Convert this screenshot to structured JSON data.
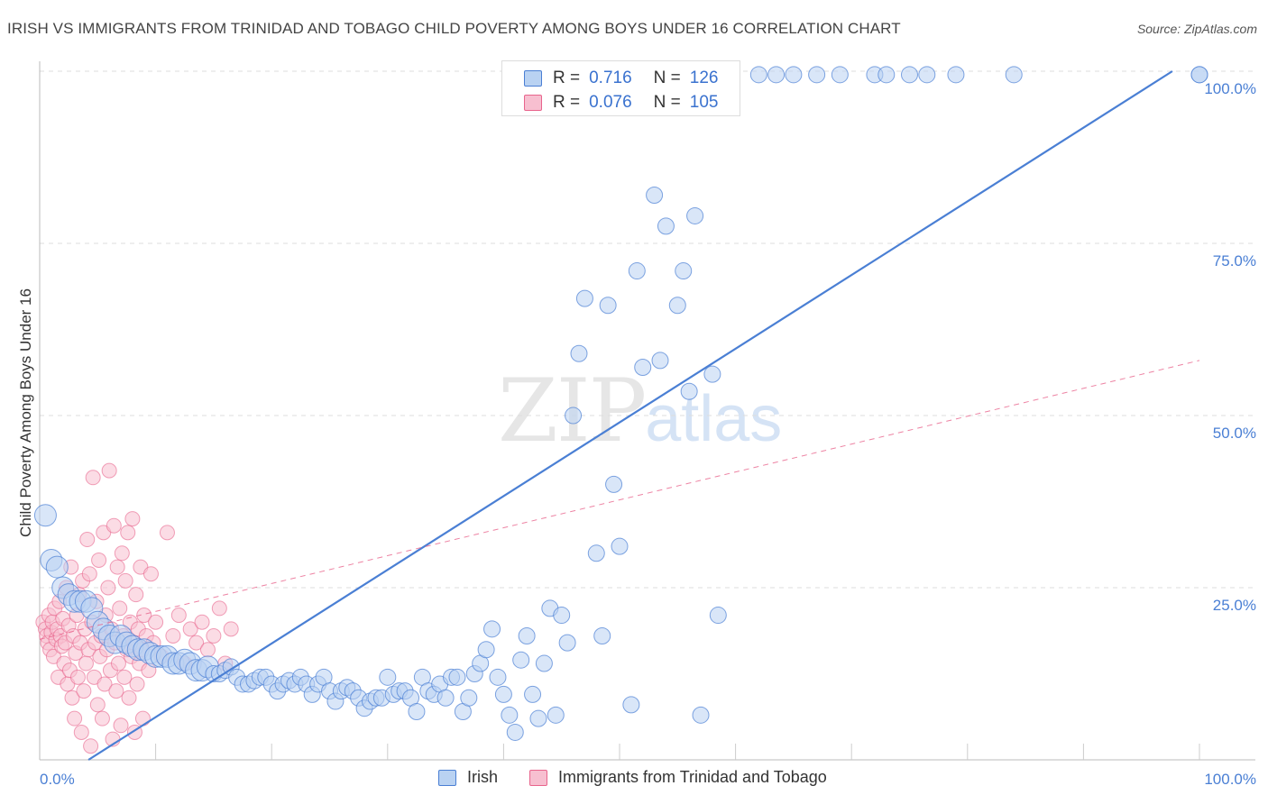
{
  "title": "IRISH VS IMMIGRANTS FROM TRINIDAD AND TOBAGO CHILD POVERTY AMONG BOYS UNDER 16 CORRELATION CHART",
  "source": "Source: ZipAtlas.com",
  "watermark": {
    "zip": "ZIP",
    "atlas": "atlas"
  },
  "legend": {
    "r_label": "R =",
    "n_label": "N =",
    "irish": {
      "r": "0.716",
      "n": "126"
    },
    "trinidad": {
      "r": "0.076",
      "n": "105"
    }
  },
  "bottom_legend": {
    "irish": "Irish",
    "trinidad": "Immigrants from Trinidad and Tobago"
  },
  "colors": {
    "irish": "#4a7fd4",
    "irish_fill": "#b9d2f2",
    "trinidad": "#e8648c",
    "trinidad_fill": "#f7bfd0",
    "grid": "#dddddd"
  },
  "chart_data": {
    "type": "scatter",
    "xlabel": "",
    "ylabel": "Child Poverty Among Boys Under 16",
    "xlim": [
      0,
      100
    ],
    "ylim": [
      0,
      100
    ],
    "x_tick_labels": [
      "0.0%",
      "100.0%"
    ],
    "y_ticks": [
      25,
      50,
      75,
      100
    ],
    "y_tick_labels": [
      "25.0%",
      "50.0%",
      "75.0%",
      "100.0%"
    ],
    "grid": true,
    "series": [
      {
        "name": "Irish",
        "trend": {
          "x": [
            0,
            100
          ],
          "y": [
            -4.5,
            102.5
          ],
          "style": "solid"
        },
        "points": [
          [
            0.5,
            35.5
          ],
          [
            1,
            29
          ],
          [
            1.5,
            28
          ],
          [
            2,
            25
          ],
          [
            2.5,
            24
          ],
          [
            3,
            23
          ],
          [
            3.5,
            23
          ],
          [
            4,
            23
          ],
          [
            4.5,
            22
          ],
          [
            5,
            20
          ],
          [
            5.5,
            19
          ],
          [
            6,
            18
          ],
          [
            6.5,
            17
          ],
          [
            7,
            18
          ],
          [
            7.5,
            17
          ],
          [
            8,
            16.5
          ],
          [
            8.5,
            16
          ],
          [
            9,
            16
          ],
          [
            9.5,
            15.5
          ],
          [
            10,
            15
          ],
          [
            10.5,
            15
          ],
          [
            11,
            15
          ],
          [
            11.5,
            14
          ],
          [
            12,
            14
          ],
          [
            12.5,
            14.5
          ],
          [
            13,
            14
          ],
          [
            13.5,
            13
          ],
          [
            14,
            13
          ],
          [
            14.5,
            13.5
          ],
          [
            15,
            12.5
          ],
          [
            15.5,
            12.5
          ],
          [
            16,
            13
          ],
          [
            16.5,
            13.5
          ],
          [
            17,
            12
          ],
          [
            17.5,
            11
          ],
          [
            18,
            11
          ],
          [
            18.5,
            11.5
          ],
          [
            19,
            12
          ],
          [
            19.5,
            12
          ],
          [
            20,
            11
          ],
          [
            20.5,
            10
          ],
          [
            21,
            11
          ],
          [
            21.5,
            11.5
          ],
          [
            22,
            11
          ],
          [
            22.5,
            12
          ],
          [
            23,
            11
          ],
          [
            23.5,
            9.5
          ],
          [
            24,
            11
          ],
          [
            24.5,
            12
          ],
          [
            25,
            10
          ],
          [
            25.5,
            8.5
          ],
          [
            26,
            10
          ],
          [
            26.5,
            10.5
          ],
          [
            27,
            10
          ],
          [
            27.5,
            9
          ],
          [
            28,
            7.5
          ],
          [
            28.5,
            8.5
          ],
          [
            29,
            9
          ],
          [
            29.5,
            9
          ],
          [
            30,
            12
          ],
          [
            30.5,
            9.5
          ],
          [
            31,
            10
          ],
          [
            31.5,
            10
          ],
          [
            32,
            9
          ],
          [
            32.5,
            7
          ],
          [
            33,
            12
          ],
          [
            33.5,
            10
          ],
          [
            34,
            9.5
          ],
          [
            34.5,
            11
          ],
          [
            35,
            9
          ],
          [
            35.5,
            12
          ],
          [
            36,
            12
          ],
          [
            36.5,
            7
          ],
          [
            37,
            9
          ],
          [
            37.5,
            12.5
          ],
          [
            38,
            14
          ],
          [
            38.5,
            16
          ],
          [
            39,
            19
          ],
          [
            39.5,
            12
          ],
          [
            40,
            9.5
          ],
          [
            40.5,
            6.5
          ],
          [
            41,
            4
          ],
          [
            41.5,
            14.5
          ],
          [
            42,
            18
          ],
          [
            42.5,
            9.5
          ],
          [
            43,
            6
          ],
          [
            43.5,
            14
          ],
          [
            44,
            22
          ],
          [
            44.5,
            6.5
          ],
          [
            45,
            21
          ],
          [
            45.5,
            17
          ],
          [
            46,
            50
          ],
          [
            46.5,
            59
          ],
          [
            47,
            67
          ],
          [
            48,
            30
          ],
          [
            48.5,
            18
          ],
          [
            49,
            66
          ],
          [
            49.5,
            40
          ],
          [
            50,
            31
          ],
          [
            51,
            8
          ],
          [
            51.5,
            71
          ],
          [
            52,
            57
          ],
          [
            53,
            82
          ],
          [
            53.5,
            58
          ],
          [
            54,
            77.5
          ],
          [
            55,
            66
          ],
          [
            55.5,
            71
          ],
          [
            56,
            53.5
          ],
          [
            56.5,
            79
          ],
          [
            57,
            6.5
          ],
          [
            58,
            56
          ],
          [
            58.5,
            21
          ],
          [
            62,
            99.5
          ],
          [
            63.5,
            99.5
          ],
          [
            65,
            99.5
          ],
          [
            67,
            99.5
          ],
          [
            69,
            99.5
          ],
          [
            72,
            99.5
          ],
          [
            73,
            99.5
          ],
          [
            75,
            99.5
          ],
          [
            76.5,
            99.5
          ],
          [
            79,
            99.5
          ],
          [
            84,
            99.5
          ],
          [
            100,
            99.5
          ],
          [
            47.5,
            97.5
          ],
          [
            100,
            99.5
          ]
        ]
      },
      {
        "name": "Immigrants from Trinidad and Tobago",
        "trend": {
          "x": [
            0,
            100
          ],
          "y": [
            17.5,
            58
          ],
          "style": "dashed"
        },
        "points": [
          [
            0.3,
            20
          ],
          [
            0.5,
            19
          ],
          [
            0.6,
            18
          ],
          [
            0.7,
            17
          ],
          [
            0.8,
            21
          ],
          [
            0.9,
            16
          ],
          [
            1,
            18.5
          ],
          [
            1.1,
            20
          ],
          [
            1.2,
            15
          ],
          [
            1.3,
            22
          ],
          [
            1.4,
            17.5
          ],
          [
            1.5,
            19
          ],
          [
            1.6,
            12
          ],
          [
            1.7,
            23
          ],
          [
            1.8,
            18
          ],
          [
            1.9,
            16.5
          ],
          [
            2,
            20.5
          ],
          [
            2.1,
            14
          ],
          [
            2.2,
            17
          ],
          [
            2.3,
            25
          ],
          [
            2.4,
            11
          ],
          [
            2.5,
            19.5
          ],
          [
            2.6,
            13
          ],
          [
            2.7,
            28
          ],
          [
            2.8,
            9
          ],
          [
            2.9,
            18
          ],
          [
            3,
            6
          ],
          [
            3.1,
            15.5
          ],
          [
            3.2,
            21
          ],
          [
            3.3,
            12
          ],
          [
            3.4,
            24
          ],
          [
            3.5,
            17
          ],
          [
            3.6,
            4
          ],
          [
            3.7,
            26
          ],
          [
            3.8,
            10
          ],
          [
            3.9,
            19
          ],
          [
            4,
            14
          ],
          [
            4.1,
            32
          ],
          [
            4.2,
            16
          ],
          [
            4.3,
            27
          ],
          [
            4.4,
            2
          ],
          [
            4.5,
            20
          ],
          [
            4.6,
            41
          ],
          [
            4.7,
            12
          ],
          [
            4.8,
            17
          ],
          [
            4.9,
            23
          ],
          [
            5,
            8
          ],
          [
            5.1,
            29
          ],
          [
            5.2,
            15
          ],
          [
            5.3,
            18
          ],
          [
            5.4,
            6
          ],
          [
            5.5,
            33
          ],
          [
            5.6,
            11
          ],
          [
            5.7,
            21
          ],
          [
            5.8,
            16
          ],
          [
            5.9,
            25
          ],
          [
            6,
            42
          ],
          [
            6.1,
            13
          ],
          [
            6.2,
            19
          ],
          [
            6.3,
            3
          ],
          [
            6.4,
            34
          ],
          [
            6.5,
            17
          ],
          [
            6.6,
            10
          ],
          [
            6.7,
            28
          ],
          [
            6.8,
            14
          ],
          [
            6.9,
            22
          ],
          [
            7,
            5
          ],
          [
            7.1,
            30
          ],
          [
            7.2,
            18
          ],
          [
            7.3,
            12
          ],
          [
            7.4,
            26
          ],
          [
            7.5,
            16
          ],
          [
            7.6,
            33
          ],
          [
            7.7,
            9
          ],
          [
            7.8,
            20
          ],
          [
            7.9,
            15
          ],
          [
            8,
            35
          ],
          [
            8.1,
            17
          ],
          [
            8.2,
            4
          ],
          [
            8.3,
            24
          ],
          [
            8.4,
            11
          ],
          [
            8.5,
            19
          ],
          [
            8.6,
            14
          ],
          [
            8.7,
            28
          ],
          [
            8.8,
            16
          ],
          [
            8.9,
            6
          ],
          [
            9,
            21
          ],
          [
            9.2,
            18
          ],
          [
            9.4,
            13
          ],
          [
            9.6,
            27
          ],
          [
            9.8,
            17
          ],
          [
            10,
            20
          ],
          [
            10.5,
            15
          ],
          [
            11,
            33
          ],
          [
            11.5,
            18
          ],
          [
            12,
            21
          ],
          [
            12.5,
            14
          ],
          [
            13,
            19
          ],
          [
            13.5,
            17
          ],
          [
            14,
            20
          ],
          [
            14.5,
            16
          ],
          [
            15,
            18
          ],
          [
            15.5,
            22
          ],
          [
            16,
            14
          ],
          [
            16.5,
            19
          ]
        ]
      }
    ]
  }
}
